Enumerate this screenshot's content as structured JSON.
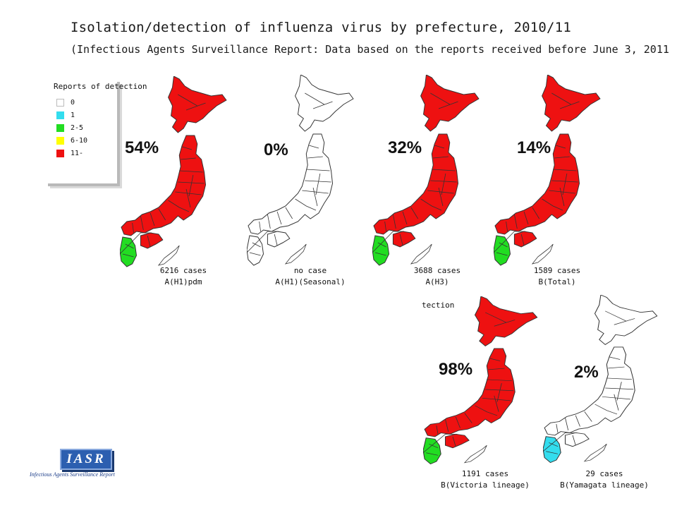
{
  "title": "Isolation/detection of influenza virus by prefecture, 2010/11",
  "subtitle": "(Infectious Agents Surveillance Report: Data based on the reports received before June 3, 2011",
  "legend": {
    "title": "Reports of detection",
    "items": [
      {
        "label": "0",
        "color": "#ffffff"
      },
      {
        "label": "1",
        "color": "#33ddee"
      },
      {
        "label": "2-5",
        "color": "#22dd22"
      },
      {
        "label": "6-10",
        "color": "#ffff00"
      },
      {
        "label": "11-",
        "color": "#ee1111"
      }
    ]
  },
  "maps": [
    {
      "percent": "54%",
      "cases": "6216 cases",
      "subtype": "A(H1)pdm",
      "dominant": "#ee1111",
      "accent": "#22dd22"
    },
    {
      "percent": "0%",
      "cases": "no case",
      "subtype": "A(H1)(Seasonal)",
      "dominant": "#ffffff",
      "accent": "#ffffff"
    },
    {
      "percent": "32%",
      "cases": "3688 cases",
      "subtype": "A(H3)",
      "dominant": "#ee1111",
      "accent": "#22dd22"
    },
    {
      "percent": "14%",
      "cases": "1589 cases",
      "subtype": "B(Total)",
      "dominant": "#ee1111",
      "accent": "#22dd22"
    },
    {
      "percent": "98%",
      "cases": "1191 cases",
      "subtype": "B(Victoria lineage)",
      "dominant": "#ee1111",
      "accent": "#22dd22"
    },
    {
      "percent": "2%",
      "cases": "29 cases",
      "subtype": "B(Yamagata lineage)",
      "dominant": "#ffffff",
      "accent": "#33ddee"
    }
  ],
  "stray_text": "tection",
  "logo": {
    "text": "IASR",
    "caption": "Infectious Agents Surveillance Report"
  }
}
